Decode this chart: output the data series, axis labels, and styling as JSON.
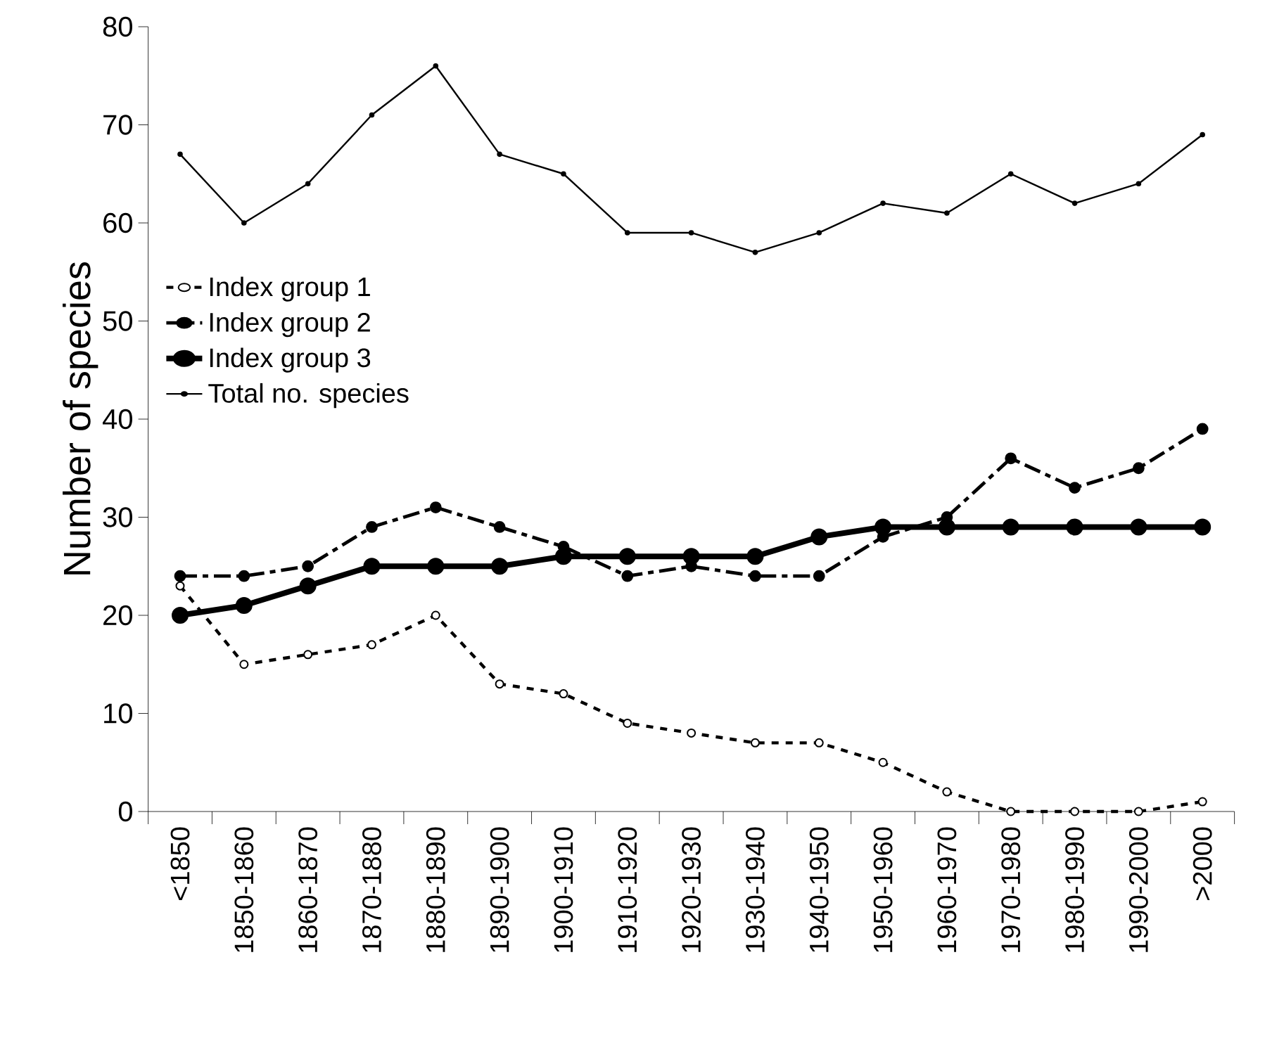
{
  "chart_data": {
    "type": "line",
    "ylabel": "Number of species",
    "categories": [
      "<1850",
      "1850-1860",
      "1860-1870",
      "1870-1880",
      "1880-1890",
      "1890-1900",
      "1900-1910",
      "1910-1920",
      "1920-1930",
      "1930-1940",
      "1940-1950",
      "1950-1960",
      "1960-1970",
      "1970-1980",
      "1980-1990",
      "1990-2000",
      ">2000"
    ],
    "series": [
      {
        "name": "Index group 1",
        "color": "#000000",
        "line_style": "dotted",
        "marker": "circle",
        "values": [
          23,
          15,
          16,
          17,
          20,
          13,
          12,
          9,
          8,
          7,
          7,
          5,
          2,
          0,
          0,
          0,
          1
        ]
      },
      {
        "name": "Index group 2",
        "color": "#000000",
        "line_style": "dashed",
        "marker": "circle",
        "values": [
          24,
          24,
          25,
          29,
          31,
          29,
          27,
          24,
          25,
          24,
          24,
          28,
          30,
          36,
          33,
          35,
          39
        ]
      },
      {
        "name": "Index group 3",
        "color": "#000000",
        "line_style": "solid",
        "marker": "circle",
        "values": [
          20,
          21,
          23,
          25,
          25,
          25,
          26,
          26,
          26,
          26,
          28,
          29,
          29,
          29,
          29,
          29,
          29
        ]
      },
      {
        "name": "Total no. species",
        "color": "#000000",
        "line_style": "solid",
        "marker": "circle",
        "values": [
          67,
          60,
          64,
          71,
          76,
          67,
          65,
          59,
          59,
          57,
          59,
          62,
          61,
          65,
          62,
          64,
          69
        ]
      }
    ],
    "ylim": [
      0,
      80
    ],
    "yticks": [
      0,
      10,
      20,
      30,
      40,
      50,
      60,
      70,
      80
    ],
    "grid": false,
    "legend": "left"
  }
}
